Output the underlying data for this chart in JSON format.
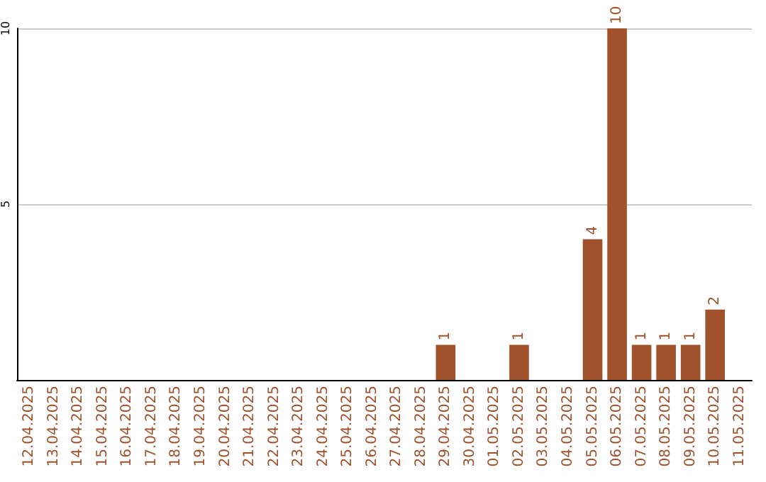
{
  "chart_data": {
    "type": "bar",
    "categories": [
      "12.04.2025",
      "13.04.2025",
      "14.04.2025",
      "15.04.2025",
      "16.04.2025",
      "17.04.2025",
      "18.04.2025",
      "19.04.2025",
      "20.04.2025",
      "21.04.2025",
      "22.04.2025",
      "23.04.2025",
      "24.04.2025",
      "25.04.2025",
      "26.04.2025",
      "27.04.2025",
      "28.04.2025",
      "29.04.2025",
      "30.04.2025",
      "01.05.2025",
      "02.05.2025",
      "03.05.2025",
      "04.05.2025",
      "05.05.2025",
      "06.05.2025",
      "07.05.2025",
      "08.05.2025",
      "09.05.2025",
      "10.05.2025",
      "11.05.2025"
    ],
    "values": [
      0,
      0,
      0,
      0,
      0,
      0,
      0,
      0,
      0,
      0,
      0,
      0,
      0,
      0,
      0,
      0,
      0,
      1,
      0,
      0,
      1,
      0,
      0,
      4,
      10,
      1,
      1,
      1,
      2,
      0
    ],
    "value_labels": [
      null,
      null,
      null,
      null,
      null,
      null,
      null,
      null,
      null,
      null,
      null,
      null,
      null,
      null,
      null,
      null,
      null,
      "1",
      null,
      null,
      "1",
      null,
      null,
      "4",
      "10",
      "1",
      "1",
      "1",
      "2",
      null
    ],
    "color": "#a0522d",
    "ylim": [
      0,
      10
    ],
    "yticks": [
      {
        "value": 0,
        "label": null
      },
      5,
      10
    ],
    "grid": "y"
  }
}
